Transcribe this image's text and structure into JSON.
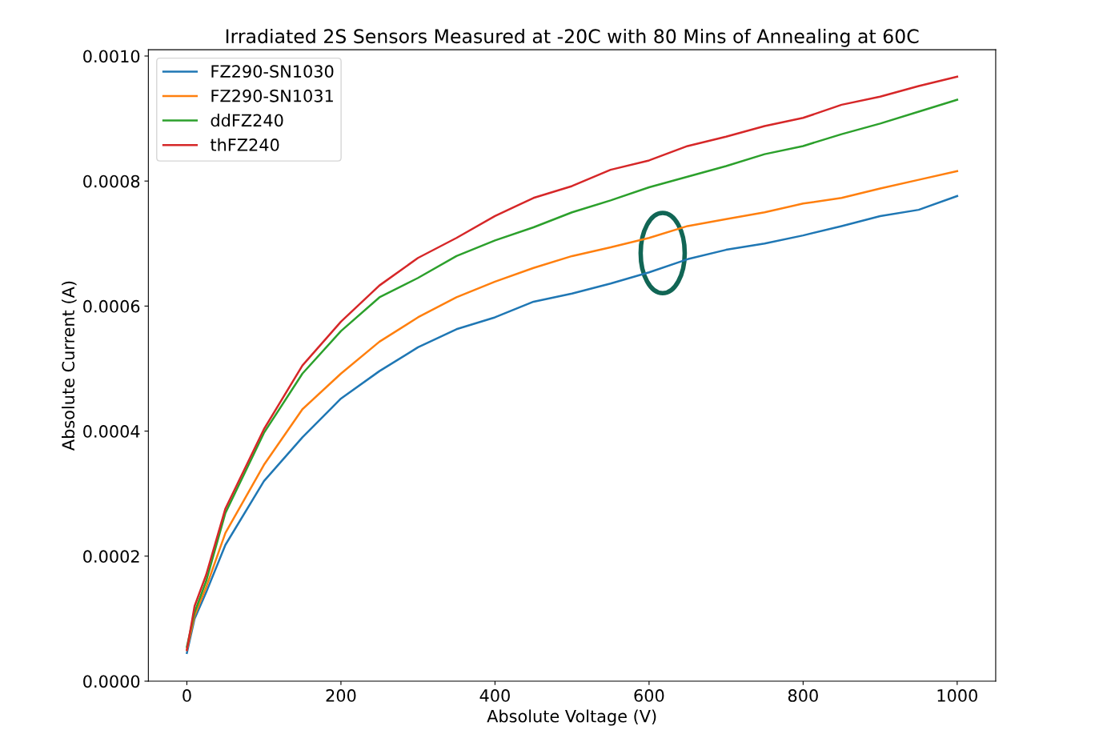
{
  "chart_data": {
    "type": "line",
    "title": "Irradiated 2S Sensors Measured at -20C with 80 Mins of Annealing at 60C",
    "xlabel": "Absolute Voltage (V)",
    "ylabel": "Absolute Current (A)",
    "x": [
      0,
      10,
      25,
      50,
      100,
      150,
      200,
      250,
      300,
      350,
      400,
      450,
      500,
      550,
      600,
      650,
      700,
      750,
      800,
      850,
      900,
      950,
      1000
    ],
    "series": [
      {
        "name": "FZ290-SN1030",
        "color": "#1f77b4",
        "values": [
          4.5e-05,
          0.0001,
          0.000142,
          0.000218,
          0.00032,
          0.00039,
          0.000452,
          0.000496,
          0.000534,
          0.000563,
          0.000582,
          0.000607,
          0.00062,
          0.000636,
          0.000654,
          0.000675,
          0.00069,
          0.0007,
          0.000713,
          0.000728,
          0.000744,
          0.000754,
          0.000776
        ]
      },
      {
        "name": "FZ290-SN1031",
        "color": "#ff7f0e",
        "values": [
          5e-05,
          0.000105,
          0.00015,
          0.000237,
          0.000346,
          0.000435,
          0.000492,
          0.000543,
          0.000582,
          0.000614,
          0.000639,
          0.000661,
          0.00068,
          0.000694,
          0.000709,
          0.000728,
          0.000739,
          0.00075,
          0.000764,
          0.000773,
          0.000788,
          0.000802,
          0.000816
        ]
      },
      {
        "name": "ddFZ240",
        "color": "#2ca02c",
        "values": [
          5.5e-05,
          0.00011,
          0.00016,
          0.000269,
          0.000397,
          0.000492,
          0.00056,
          0.000614,
          0.000645,
          0.00068,
          0.000705,
          0.000726,
          0.00075,
          0.000769,
          0.00079,
          0.000807,
          0.000824,
          0.000843,
          0.000856,
          0.000875,
          0.000892,
          0.000911,
          0.00093
        ]
      },
      {
        "name": "thFZ240",
        "color": "#d62728",
        "values": [
          5e-05,
          0.00012,
          0.00017,
          0.000276,
          0.000403,
          0.000505,
          0.000575,
          0.000633,
          0.000677,
          0.000709,
          0.000744,
          0.000773,
          0.000792,
          0.000818,
          0.000833,
          0.000856,
          0.000871,
          0.000888,
          0.000901,
          0.000922,
          0.000935,
          0.000952,
          0.000967
        ]
      }
    ],
    "xlim": [
      -50,
      1050
    ],
    "xticks": [
      0,
      200,
      400,
      600,
      800,
      1000
    ],
    "ylim": [
      0,
      0.00101
    ],
    "yticks": [
      {
        "value": 0,
        "label": "0.0000"
      },
      {
        "value": 0.0002,
        "label": "0.0002"
      },
      {
        "value": 0.0004,
        "label": "0.0004"
      },
      {
        "value": 0.0006,
        "label": "0.0006"
      },
      {
        "value": 0.0008,
        "label": "0.0008"
      },
      {
        "value": 0.001,
        "label": "0.0010"
      }
    ],
    "legend": "top left",
    "grid": false,
    "marker": "none",
    "line_style": "solid"
  }
}
